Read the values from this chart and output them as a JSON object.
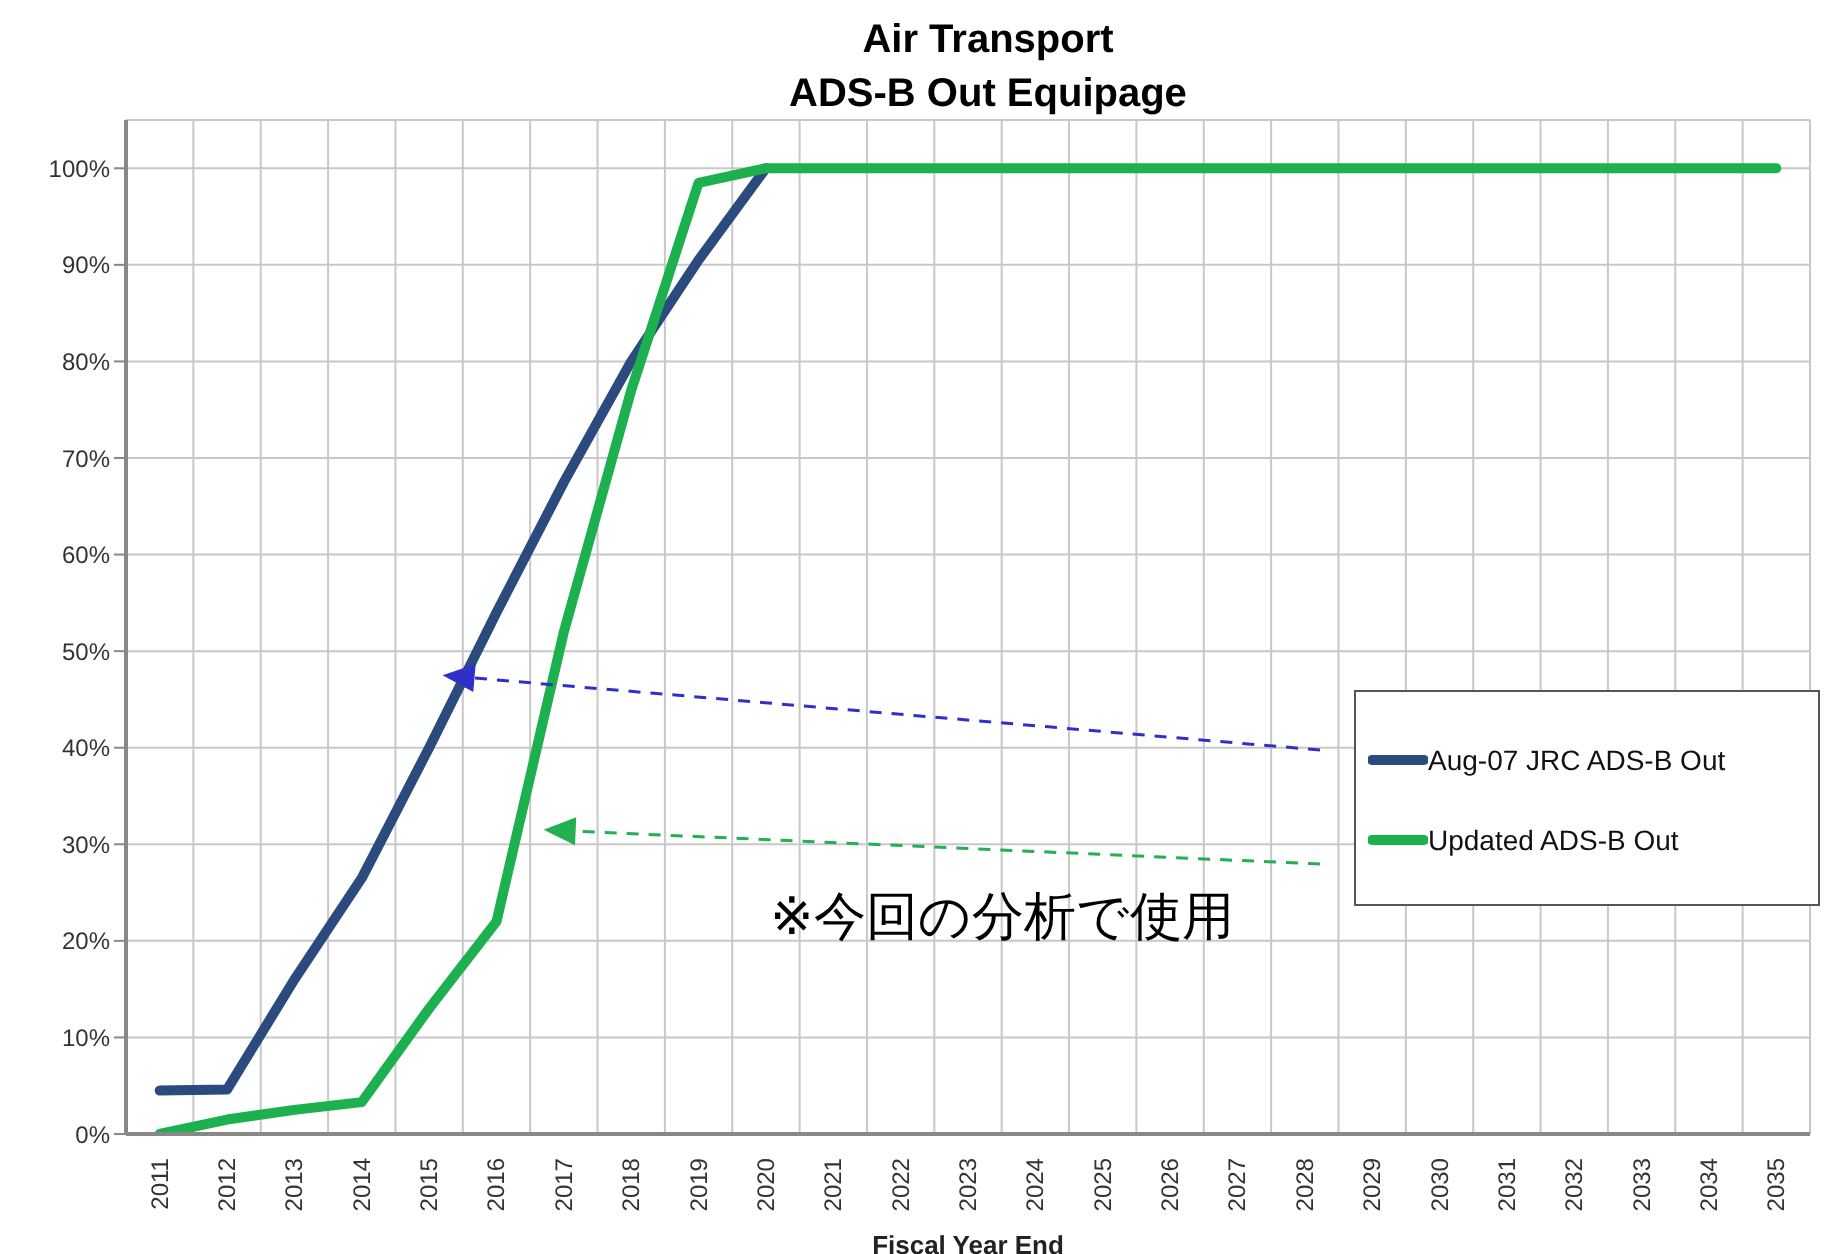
{
  "chart_data": {
    "type": "line",
    "title": "Air Transport\nADS-B Out Equipage",
    "xlabel": "Fiscal Year End",
    "categories": [
      "2011",
      "2012",
      "2013",
      "2014",
      "2015",
      "2016",
      "2017",
      "2018",
      "2019",
      "2020",
      "2021",
      "2022",
      "2023",
      "2024",
      "2025",
      "2026",
      "2027",
      "2028",
      "2029",
      "2030",
      "2031",
      "2032",
      "2033",
      "2034",
      "2035"
    ],
    "series": [
      {
        "name": "Aug-07 JRC ADS-B Out",
        "color": "#2b4a7e",
        "values": [
          4.5,
          4.6,
          16,
          26.5,
          40,
          54,
          67.5,
          80,
          90.5,
          100,
          null,
          null,
          null,
          null,
          null,
          null,
          null,
          null,
          null,
          null,
          null,
          null,
          null,
          null,
          null
        ]
      },
      {
        "name": "Updated ADS-B Out",
        "color": "#1db04f",
        "values": [
          0,
          1.5,
          2.5,
          3.3,
          13,
          22,
          52,
          77,
          98.5,
          100,
          100,
          100,
          100,
          100,
          100,
          100,
          100,
          100,
          100,
          100,
          100,
          100,
          100,
          100,
          100
        ]
      }
    ],
    "ylim": [
      0,
      105
    ],
    "yticks": [
      {
        "value": 0,
        "label": "0%"
      },
      {
        "value": 10,
        "label": "10%"
      },
      {
        "value": 20,
        "label": "20%"
      },
      {
        "value": 30,
        "label": "30%"
      },
      {
        "value": 40,
        "label": "40%"
      },
      {
        "value": 50,
        "label": "50%"
      },
      {
        "value": 60,
        "label": "60%"
      },
      {
        "value": 70,
        "label": "70%"
      },
      {
        "value": 80,
        "label": "80%"
      },
      {
        "value": 90,
        "label": "90%"
      },
      {
        "value": 100,
        "label": "100%"
      }
    ],
    "grid": true,
    "legend": "right",
    "marker": "none",
    "line_style": "solid",
    "annotations": [
      "※今回の分析で使用"
    ]
  }
}
